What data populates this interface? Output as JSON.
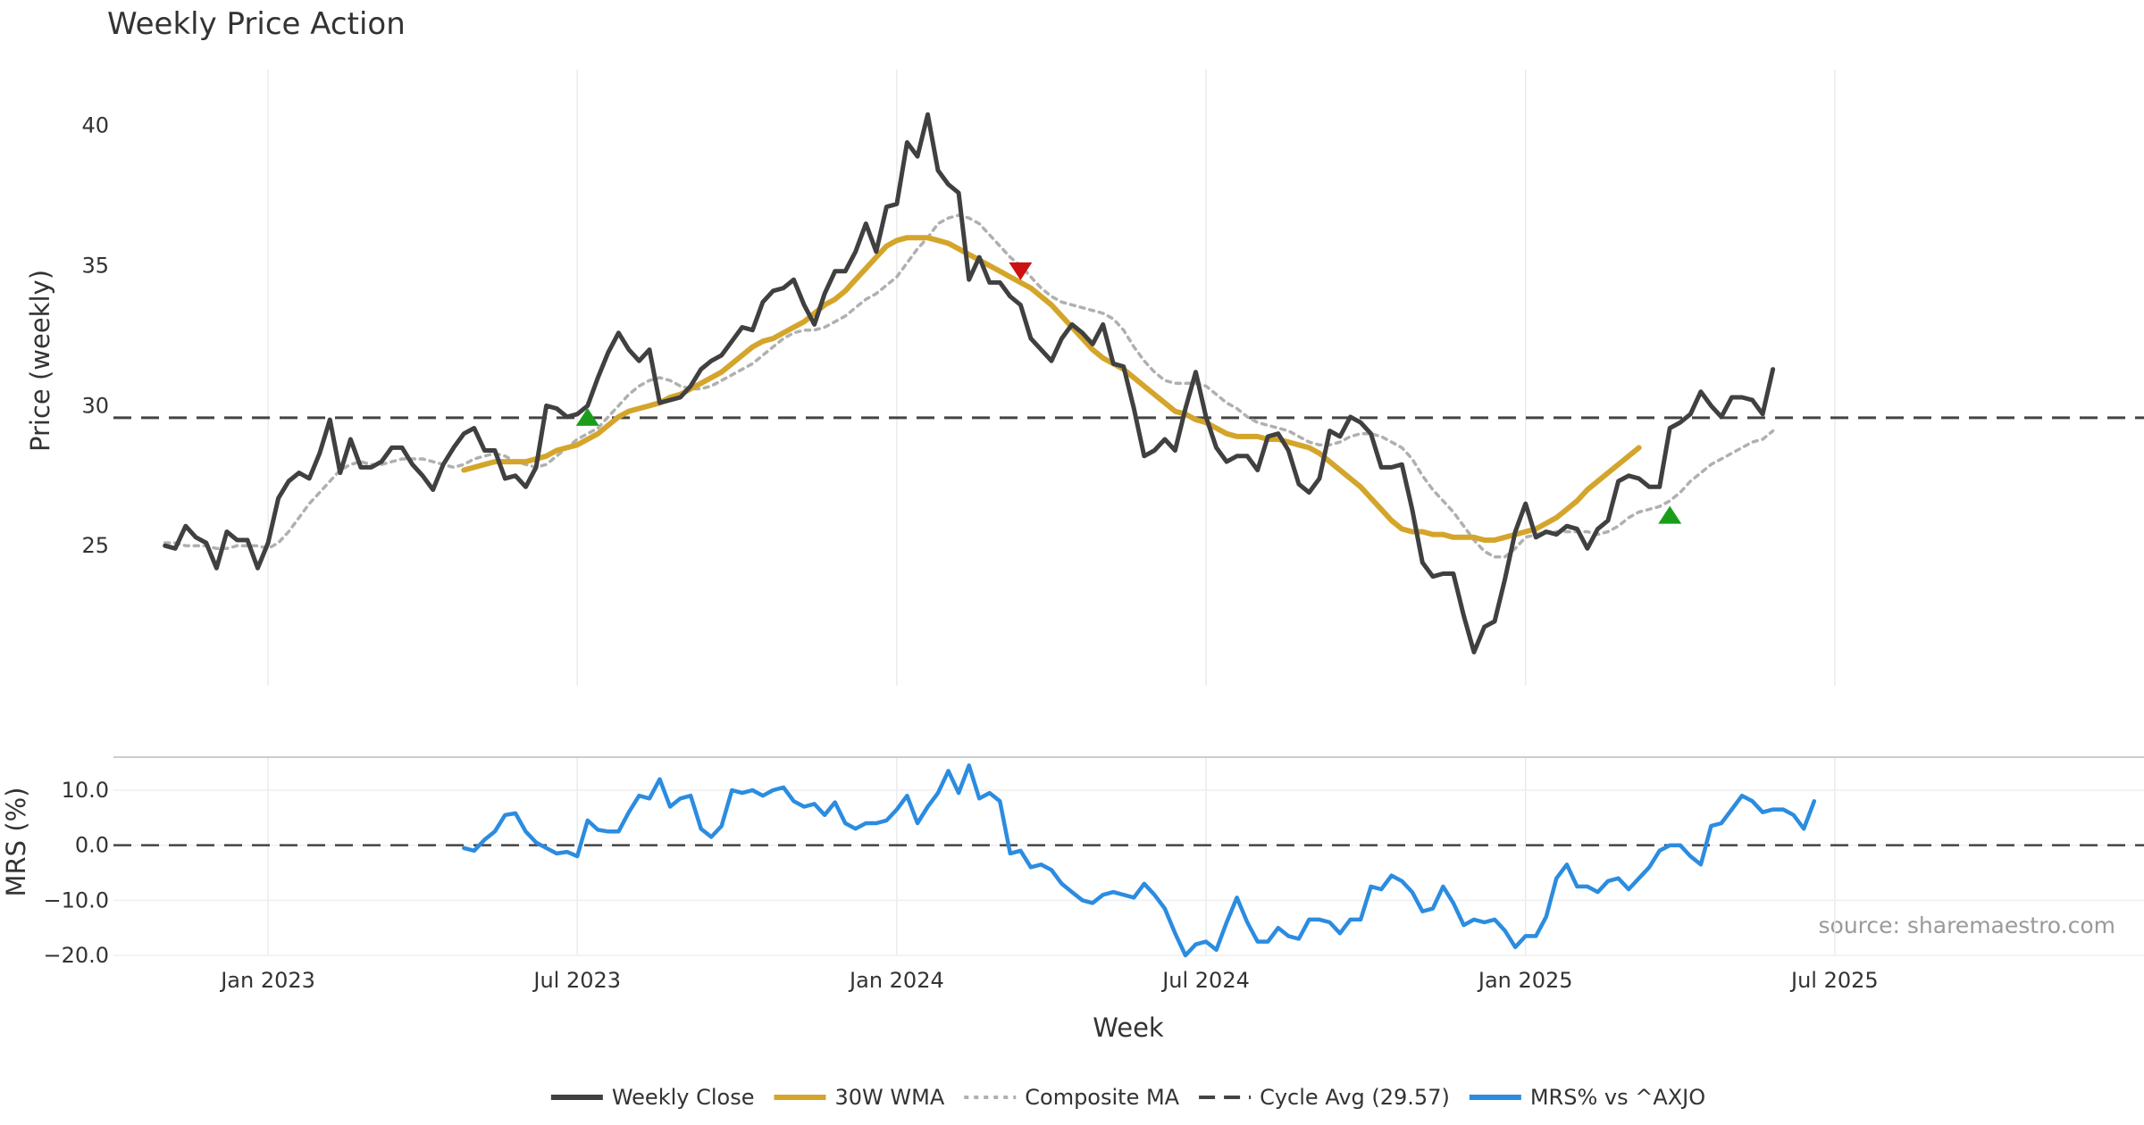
{
  "chart_data": [
    {
      "id": "price",
      "type": "line",
      "title": "Weekly Price Action",
      "xlabel": "",
      "ylabel": "Price (weekly)",
      "ylim": [
        20,
        41.5
      ],
      "yticks": [
        25,
        30,
        35,
        40
      ],
      "grid": true,
      "x_index_range": [
        -5,
        192
      ],
      "reference_line": {
        "name": "Cycle Avg (29.57)",
        "value": 29.57,
        "style": "dashed",
        "color": "#444444"
      },
      "series": [
        {
          "name": "Weekly Close",
          "color": "#404040",
          "style": "solid",
          "x_start": 0,
          "values": [
            25.0,
            24.9,
            25.7,
            25.3,
            25.1,
            24.2,
            25.5,
            25.2,
            25.2,
            24.2,
            25.1,
            26.7,
            27.3,
            27.6,
            27.4,
            28.3,
            29.5,
            27.6,
            28.8,
            27.8,
            27.8,
            28.0,
            28.5,
            28.5,
            27.9,
            27.5,
            27.0,
            27.9,
            28.5,
            29.0,
            29.2,
            28.4,
            28.4,
            27.4,
            27.5,
            27.1,
            27.8,
            30.0,
            29.9,
            29.6,
            29.7,
            30.0,
            31.0,
            31.9,
            32.6,
            32.0,
            31.6,
            32.0,
            30.1,
            30.2,
            30.3,
            30.7,
            31.3,
            31.6,
            31.8,
            32.3,
            32.8,
            32.7,
            33.7,
            34.1,
            34.2,
            34.5,
            33.6,
            32.9,
            34.0,
            34.8,
            34.8,
            35.5,
            36.5,
            35.5,
            37.1,
            37.2,
            39.4,
            38.9,
            40.4,
            38.4,
            37.9,
            37.6,
            34.5,
            35.3,
            34.4,
            34.4,
            33.9,
            33.6,
            32.4,
            32.0,
            31.6,
            32.4,
            32.9,
            32.6,
            32.2,
            32.9,
            31.5,
            31.4,
            29.9,
            28.2,
            28.4,
            28.8,
            28.4,
            29.9,
            31.2,
            29.6,
            28.5,
            28.0,
            28.2,
            28.2,
            27.7,
            28.9,
            29.0,
            28.4,
            27.2,
            26.9,
            27.4,
            29.1,
            28.9,
            29.6,
            29.4,
            29.0,
            27.8,
            27.8,
            27.9,
            26.3,
            24.4,
            23.9,
            24.0,
            24.0,
            22.5,
            21.2,
            22.1,
            22.3,
            23.8,
            25.5,
            26.5,
            25.3,
            25.5,
            25.4,
            25.7,
            25.6,
            24.9,
            25.6,
            25.9,
            27.3,
            27.5,
            27.4,
            27.1,
            27.1,
            29.2,
            29.4,
            29.7,
            30.5,
            30.0,
            29.6,
            30.3,
            30.3,
            30.2,
            29.7,
            31.3
          ]
        },
        {
          "name": "30W WMA",
          "color": "#D4A52B",
          "style": "solid",
          "x_start": 29,
          "values": [
            27.7,
            27.8,
            27.9,
            28.0,
            28.0,
            28.0,
            28.0,
            28.1,
            28.2,
            28.4,
            28.5,
            28.6,
            28.8,
            29.0,
            29.3,
            29.6,
            29.8,
            29.9,
            30.0,
            30.1,
            30.3,
            30.4,
            30.6,
            30.8,
            31.0,
            31.2,
            31.5,
            31.8,
            32.1,
            32.3,
            32.4,
            32.6,
            32.8,
            33.0,
            33.3,
            33.6,
            33.8,
            34.1,
            34.5,
            34.9,
            35.3,
            35.7,
            35.9,
            36.0,
            36.0,
            36.0,
            35.9,
            35.8,
            35.6,
            35.4,
            35.2,
            35.0,
            34.8,
            34.6,
            34.4,
            34.2,
            33.9,
            33.6,
            33.2,
            32.8,
            32.4,
            32.0,
            31.7,
            31.5,
            31.3,
            31.0,
            30.7,
            30.4,
            30.1,
            29.8,
            29.7,
            29.5,
            29.4,
            29.2,
            29.0,
            28.9,
            28.9,
            28.9,
            28.8,
            28.8,
            28.7,
            28.6,
            28.5,
            28.3,
            28.0,
            27.7,
            27.4,
            27.1,
            26.7,
            26.3,
            25.9,
            25.6,
            25.5,
            25.5,
            25.4,
            25.4,
            25.3,
            25.3,
            25.3,
            25.2,
            25.2,
            25.3,
            25.4,
            25.5,
            25.6,
            25.8,
            26.0,
            26.3,
            26.6,
            27.0,
            27.3,
            27.6,
            27.9,
            28.2,
            28.5
          ]
        },
        {
          "name": "Composite MA",
          "color": "#b0b0b0",
          "style": "dotted",
          "x_start": 0,
          "values": [
            25.1,
            25.1,
            25.0,
            25.0,
            25.0,
            24.9,
            24.9,
            25.0,
            25.0,
            25.0,
            24.9,
            25.1,
            25.5,
            26.0,
            26.5,
            26.9,
            27.3,
            27.7,
            27.9,
            28.0,
            27.9,
            27.9,
            28.0,
            28.1,
            28.1,
            28.1,
            28.0,
            27.9,
            27.8,
            27.9,
            28.1,
            28.2,
            28.3,
            28.2,
            28.0,
            27.9,
            27.8,
            27.9,
            28.2,
            28.5,
            28.8,
            29.0,
            29.2,
            29.6,
            30.0,
            30.4,
            30.7,
            30.9,
            31.0,
            30.9,
            30.7,
            30.6,
            30.6,
            30.7,
            30.9,
            31.1,
            31.3,
            31.5,
            31.8,
            32.1,
            32.4,
            32.6,
            32.7,
            32.7,
            32.8,
            33.0,
            33.2,
            33.5,
            33.8,
            34.0,
            34.3,
            34.6,
            35.1,
            35.6,
            36.0,
            36.5,
            36.7,
            36.8,
            36.7,
            36.5,
            36.1,
            35.7,
            35.3,
            35.0,
            34.6,
            34.2,
            33.9,
            33.7,
            33.6,
            33.5,
            33.4,
            33.3,
            33.1,
            32.7,
            32.1,
            31.6,
            31.2,
            30.9,
            30.8,
            30.8,
            30.8,
            30.7,
            30.4,
            30.1,
            29.9,
            29.6,
            29.4,
            29.3,
            29.2,
            29.1,
            28.9,
            28.7,
            28.6,
            28.6,
            28.7,
            28.9,
            29.0,
            29.0,
            28.9,
            28.7,
            28.5,
            28.1,
            27.5,
            27.0,
            26.6,
            26.2,
            25.7,
            25.2,
            24.8,
            24.6,
            24.6,
            24.9,
            25.3,
            25.4,
            25.5,
            25.5,
            25.5,
            25.5,
            25.5,
            25.4,
            25.5,
            25.7,
            26.0,
            26.2,
            26.3,
            26.4,
            26.6,
            26.9,
            27.3,
            27.6,
            27.9,
            28.1,
            28.3,
            28.5,
            28.7,
            28.8,
            29.1
          ]
        }
      ],
      "markers": [
        {
          "type": "buy",
          "x": 41,
          "value": 29.6,
          "color": "#1a9e1a"
        },
        {
          "type": "sell",
          "x": 83,
          "value": 34.8,
          "color": "#cc1111"
        },
        {
          "type": "buy",
          "x": 146,
          "value": 26.1,
          "color": "#1a9e1a"
        }
      ]
    },
    {
      "id": "mrs",
      "type": "line",
      "xlabel": "Week",
      "ylabel": "MRS (%)",
      "ylim": [
        -20.0,
        16.0
      ],
      "yticks": [
        -20.0,
        -10.0,
        0.0,
        10.0
      ],
      "ytick_labels": [
        "−20.0",
        "−10.0",
        "0.0",
        "10.0"
      ],
      "grid": true,
      "x_index_range": [
        -5,
        192
      ],
      "x_tick_positions": [
        10,
        40,
        71,
        101,
        132,
        162
      ],
      "x_tick_labels": [
        "Jan 2023",
        "Jul 2023",
        "Jan 2024",
        "Jul 2024",
        "Jan 2025",
        "Jul 2025"
      ],
      "reference_line": {
        "value": 0,
        "style": "dashed",
        "color": "#444444"
      },
      "series": [
        {
          "name": "MRS% vs ^AXJO",
          "color": "#2b8ce0",
          "style": "solid",
          "x_start": 29,
          "values": [
            -0.5,
            -1.0,
            1.0,
            2.5,
            5.5,
            5.8,
            2.5,
            0.5,
            -0.5,
            -1.5,
            -1.2,
            -2.0,
            4.5,
            2.8,
            2.5,
            2.5,
            6.0,
            9.0,
            8.5,
            12.0,
            7.0,
            8.5,
            9.0,
            3.0,
            1.5,
            3.5,
            10.0,
            9.5,
            10.0,
            9.0,
            10.0,
            10.5,
            8.0,
            7.0,
            7.5,
            5.5,
            7.8,
            4.0,
            3.0,
            4.0,
            4.0,
            4.5,
            6.5,
            9.0,
            4.0,
            7.0,
            9.5,
            13.5,
            9.5,
            14.5,
            8.5,
            9.5,
            8.0,
            -1.5,
            -1.0,
            -4.0,
            -3.5,
            -4.5,
            -7.0,
            -8.5,
            -10.0,
            -10.5,
            -9.0,
            -8.5,
            -9.0,
            -9.5,
            -7.0,
            -9.0,
            -11.5,
            -16.0,
            -20.0,
            -18.0,
            -17.5,
            -19.0,
            -14.0,
            -9.5,
            -14.0,
            -17.5,
            -17.5,
            -15.0,
            -16.5,
            -17.0,
            -13.5,
            -13.5,
            -14.0,
            -16.0,
            -13.5,
            -13.5,
            -7.5,
            -8.0,
            -5.5,
            -6.5,
            -8.5,
            -12.0,
            -11.5,
            -7.5,
            -10.5,
            -14.5,
            -13.5,
            -14.0,
            -13.5,
            -15.5,
            -18.5,
            -16.5,
            -16.5,
            -13.0,
            -6.0,
            -3.5,
            -7.5,
            -7.5,
            -8.5,
            -6.5,
            -6.0,
            -8.0,
            -6.0,
            -4.0,
            -1.0,
            0.0,
            0.0,
            -2.0,
            -3.5,
            3.5,
            4.0,
            6.5,
            9.0,
            8.0,
            6.0,
            6.5,
            6.5,
            5.5,
            3.0,
            8.0
          ]
        }
      ],
      "annotation": "source: sharemaestro.com"
    }
  ],
  "legend": {
    "placement": "bottom-center",
    "items": [
      {
        "label": "Weekly Close",
        "color": "#404040",
        "style": "solid"
      },
      {
        "label": "30W WMA",
        "color": "#D4A52B",
        "style": "solid"
      },
      {
        "label": "Composite MA",
        "color": "#b0b0b0",
        "style": "dotted"
      },
      {
        "label": "Cycle Avg (29.57)",
        "color": "#444444",
        "style": "dashed"
      },
      {
        "label": "MRS% vs ^AXJO",
        "color": "#2b8ce0",
        "style": "solid"
      }
    ]
  }
}
